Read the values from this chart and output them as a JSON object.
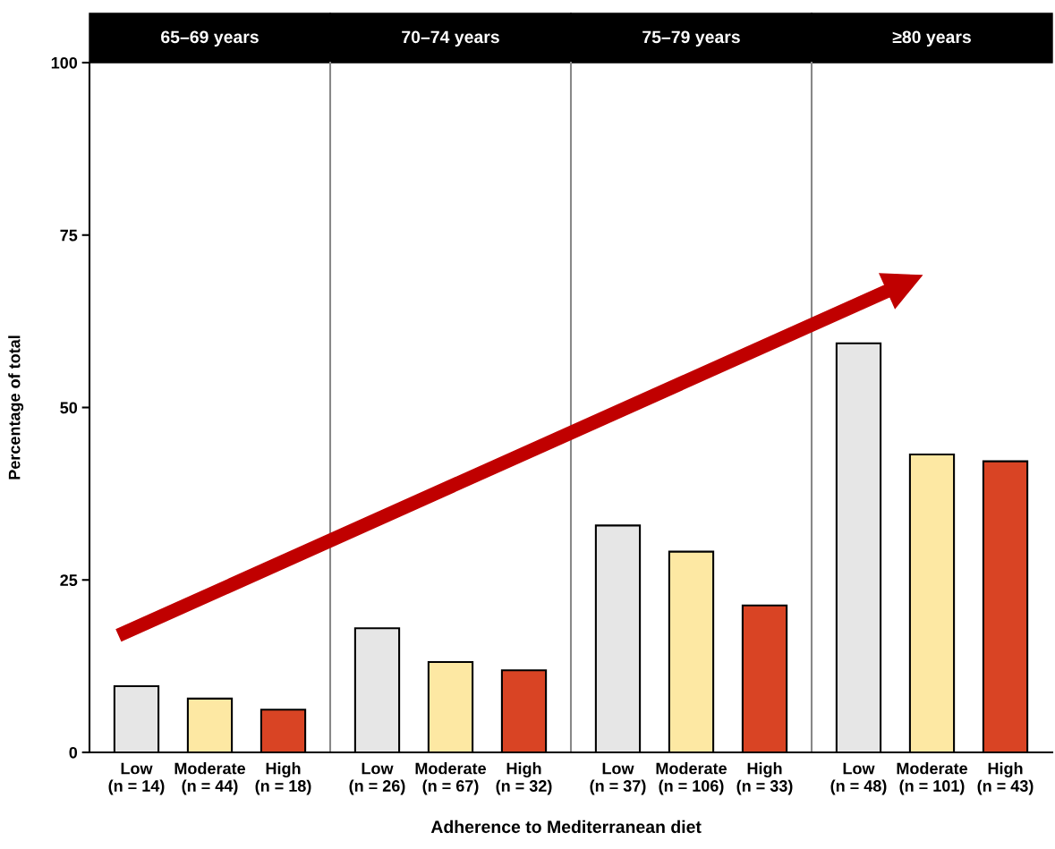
{
  "chart_data": [
    {
      "type": "bar",
      "title": "65–69 years",
      "ylabel": "Percentage of total",
      "categories": [
        "Low\n(n = 14)",
        "Moderate\n(n = 44)",
        "High\n(n = 18)"
      ],
      "values": [
        9.6,
        7.8,
        6.2
      ],
      "colors": [
        "#e6e6e6",
        "#fde8a3",
        "#d94424"
      ],
      "ylim": [
        0,
        100
      ],
      "yticks": [
        0,
        25,
        50,
        75,
        100
      ]
    },
    {
      "type": "bar",
      "title": "70–74 years",
      "xlabel": "Adherence to Mediterranean diet",
      "categories": [
        "Low\n(n = 26)",
        "Moderate\n(n = 67)",
        "High\n(n = 32)"
      ],
      "values": [
        18.0,
        13.1,
        11.9
      ],
      "colors": [
        "#e6e6e6",
        "#fde8a3",
        "#d94424"
      ],
      "ylim": [
        0,
        100
      ],
      "yticks": [
        0,
        25,
        50,
        75,
        100
      ],
      "tick_labels": "x"
    },
    {
      "type": "bar",
      "title": "75–79 years",
      "categories": [
        "Low\n(n = 37)",
        "Moderate\n(n = 106)",
        "High\n(n = 33)"
      ],
      "values": [
        32.9,
        29.1,
        21.3
      ],
      "colors": [
        "#e6e6e6",
        "#fde8a3",
        "#d94424"
      ],
      "ylim": [
        0,
        100
      ],
      "yticks": [
        0,
        25,
        50,
        75,
        100
      ],
      "tick_labels": "x"
    },
    {
      "type": "bar",
      "title": "≥80 years",
      "categories": [
        "Low\n(n = 48)",
        "Moderate\n(n = 101)",
        "High\n(n = 43)"
      ],
      "values": [
        59.3,
        43.2,
        42.2
      ],
      "colors": [
        "#e6e6e6",
        "#fde8a3",
        "#d94424"
      ],
      "ylim": [
        0,
        100
      ],
      "yticks": [
        0,
        25,
        50,
        75,
        100
      ],
      "tick_labels": "x"
    }
  ]
}
